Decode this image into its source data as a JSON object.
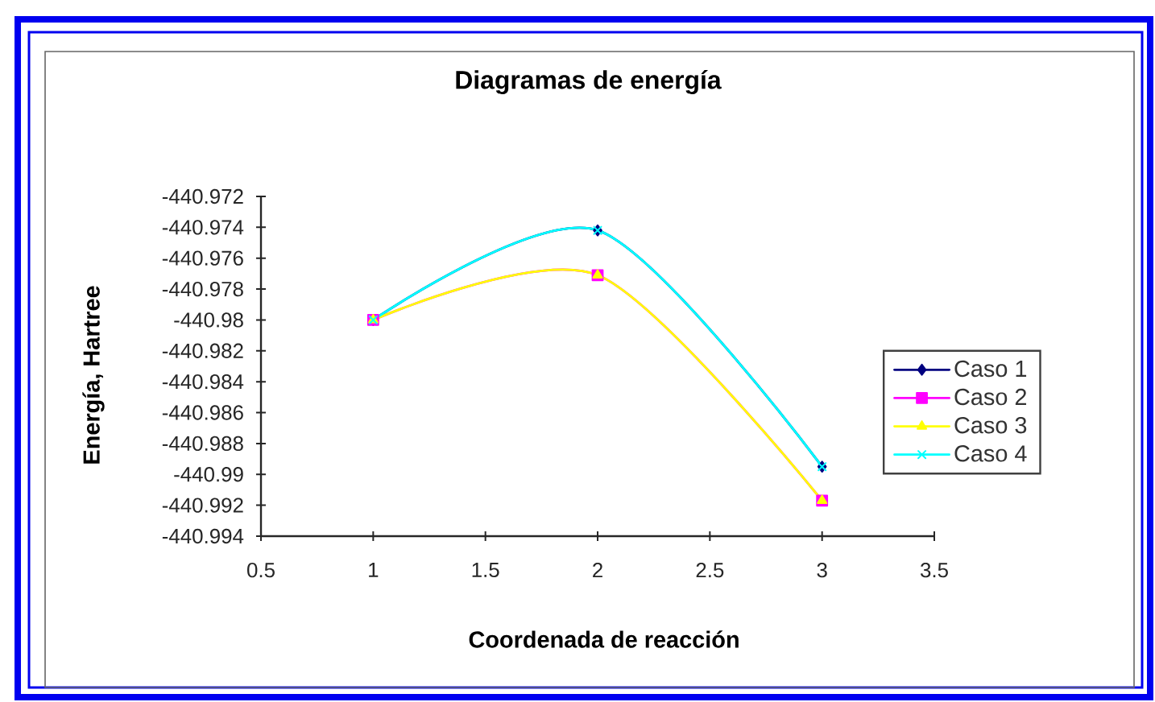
{
  "chart_data": {
    "type": "line",
    "title": "Diagramas de energía",
    "xlabel": "Coordenada de reacción",
    "ylabel": "Energía, Hartree",
    "x": [
      1,
      2,
      3
    ],
    "series": [
      {
        "name": "Caso 1",
        "color": "#000080",
        "marker": "diamond",
        "values": [
          -440.98,
          -440.9742,
          -440.9895
        ]
      },
      {
        "name": "Caso 2",
        "color": "#ff00ff",
        "marker": "square",
        "values": [
          -440.98,
          -440.9771,
          -440.9917
        ]
      },
      {
        "name": "Caso 3",
        "color": "#ffff00",
        "marker": "triangle",
        "values": [
          -440.98,
          -440.9771,
          -440.9917
        ]
      },
      {
        "name": "Caso 4",
        "color": "#00ffff",
        "marker": "cross",
        "values": [
          -440.98,
          -440.9742,
          -440.9895
        ]
      }
    ],
    "xlim": [
      0.5,
      3.5
    ],
    "xticks": [
      0.5,
      1,
      1.5,
      2,
      2.5,
      3,
      3.5
    ],
    "ylim": [
      -440.994,
      -440.972
    ],
    "yticks": [
      -440.994,
      -440.992,
      -440.99,
      -440.988,
      -440.986,
      -440.984,
      -440.982,
      -440.98,
      -440.978,
      -440.976,
      -440.974,
      -440.972
    ],
    "grid": false,
    "legend": "right",
    "line_style": "solid"
  }
}
